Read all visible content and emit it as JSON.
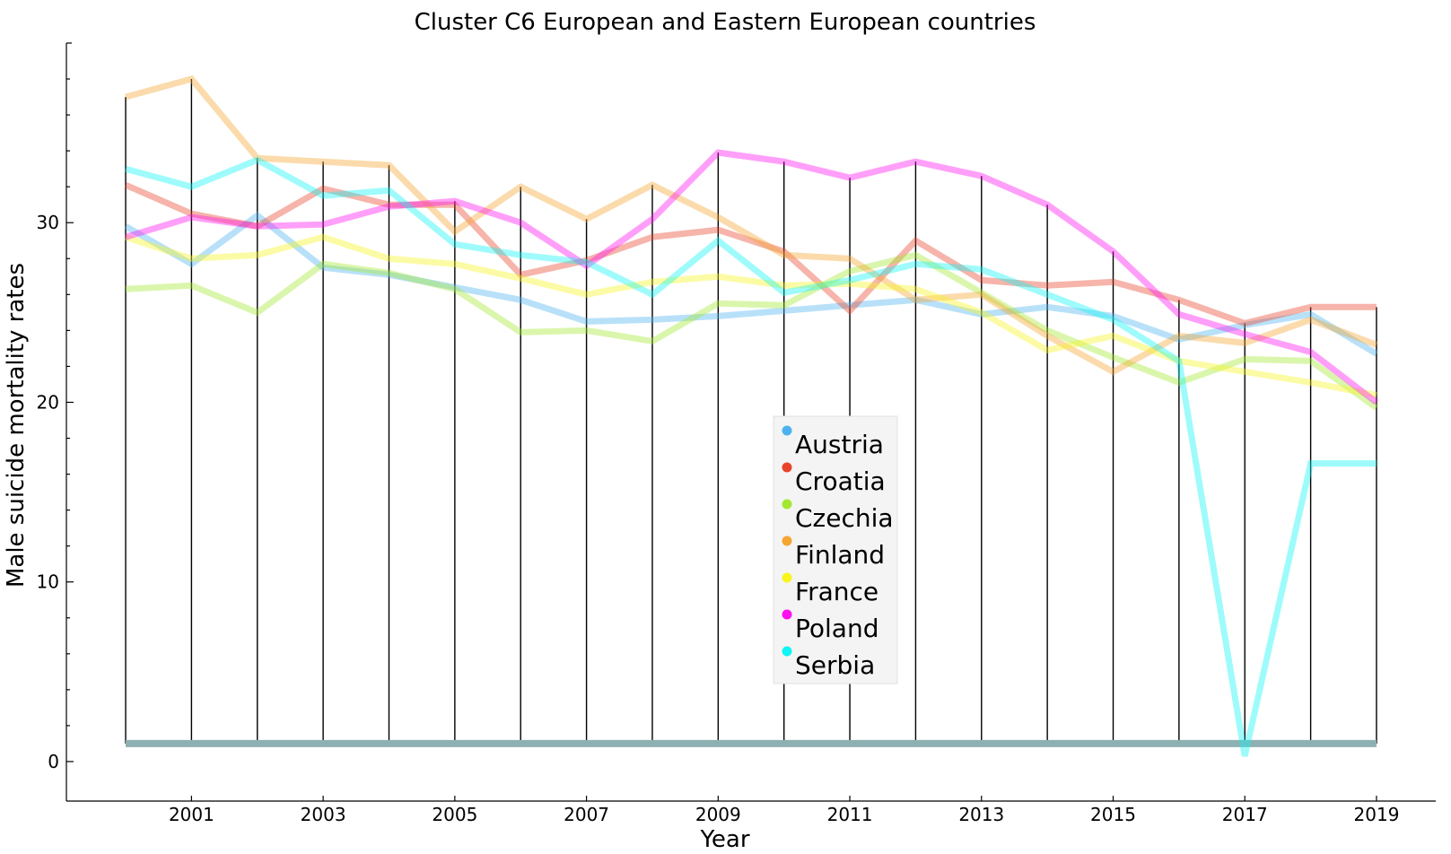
{
  "chart_data": {
    "type": "line",
    "title": "Cluster C6 European and Eastern European countries",
    "xlabel": "Year",
    "ylabel": "Male suicide mortality rates",
    "xlim": [
      1999.1,
      2019.9
    ],
    "ylim": [
      -2.2,
      40.0
    ],
    "x": [
      2000,
      2001,
      2002,
      2003,
      2004,
      2005,
      2006,
      2007,
      2008,
      2009,
      2010,
      2011,
      2012,
      2013,
      2014,
      2015,
      2016,
      2017,
      2018,
      2019
    ],
    "xticks": [
      "2001",
      "2003",
      "2005",
      "2007",
      "2009",
      "2011",
      "2013",
      "2015",
      "2017",
      "2019"
    ],
    "yticks": [
      "0",
      "10",
      "20",
      "30"
    ],
    "legend_position": "center",
    "grid": false,
    "baseline": {
      "value": 1.0,
      "color": "#8fb0b2"
    },
    "series": [
      {
        "name": "Austria",
        "color": "#4db3f0",
        "values": [
          29.8,
          27.7,
          30.4,
          27.5,
          27.1,
          26.4,
          25.7,
          24.5,
          24.6,
          24.8,
          25.1,
          25.4,
          25.7,
          24.9,
          25.3,
          24.8,
          23.5,
          24.3,
          24.9,
          22.7
        ]
      },
      {
        "name": "Croatia",
        "color": "#e8442a",
        "values": [
          32.1,
          30.5,
          29.8,
          31.9,
          31.0,
          31.0,
          27.1,
          27.9,
          29.2,
          29.6,
          28.4,
          25.1,
          29.0,
          26.8,
          26.5,
          26.7,
          25.7,
          24.4,
          25.3,
          25.3
        ]
      },
      {
        "name": "Czechia",
        "color": "#a3e830",
        "values": [
          26.3,
          26.5,
          25.0,
          27.7,
          27.2,
          26.3,
          23.9,
          24.0,
          23.4,
          25.5,
          25.4,
          27.3,
          28.2,
          26.1,
          24.0,
          22.5,
          21.1,
          22.4,
          22.3,
          19.7
        ]
      },
      {
        "name": "Finland",
        "color": "#f5a630",
        "values": [
          37.0,
          38.0,
          33.6,
          33.4,
          33.2,
          29.5,
          32.0,
          30.2,
          32.1,
          30.3,
          28.2,
          28.0,
          25.7,
          26.0,
          23.7,
          21.7,
          23.7,
          23.3,
          24.6,
          23.2
        ]
      },
      {
        "name": "France",
        "color": "#f8f51e",
        "values": [
          29.2,
          28.0,
          28.2,
          29.2,
          28.0,
          27.7,
          26.9,
          26.0,
          26.7,
          27.0,
          26.5,
          26.6,
          26.3,
          25.0,
          22.9,
          23.7,
          22.3,
          21.7,
          21.1,
          20.4
        ]
      },
      {
        "name": "Poland",
        "color": "#ff10f0",
        "values": [
          29.2,
          30.3,
          29.8,
          29.9,
          30.9,
          31.2,
          30.0,
          27.6,
          30.2,
          33.9,
          33.4,
          32.5,
          33.4,
          32.6,
          31.0,
          28.4,
          24.9,
          23.8,
          22.8,
          20.0
        ]
      },
      {
        "name": "Serbia",
        "color": "#0ff4f4",
        "values": [
          33.0,
          32.0,
          33.5,
          31.5,
          31.8,
          28.8,
          28.2,
          27.8,
          26.0,
          29.0,
          26.1,
          26.8,
          27.7,
          27.4,
          26.0,
          24.6,
          22.3,
          0.3,
          16.6,
          16.6
        ]
      }
    ]
  }
}
